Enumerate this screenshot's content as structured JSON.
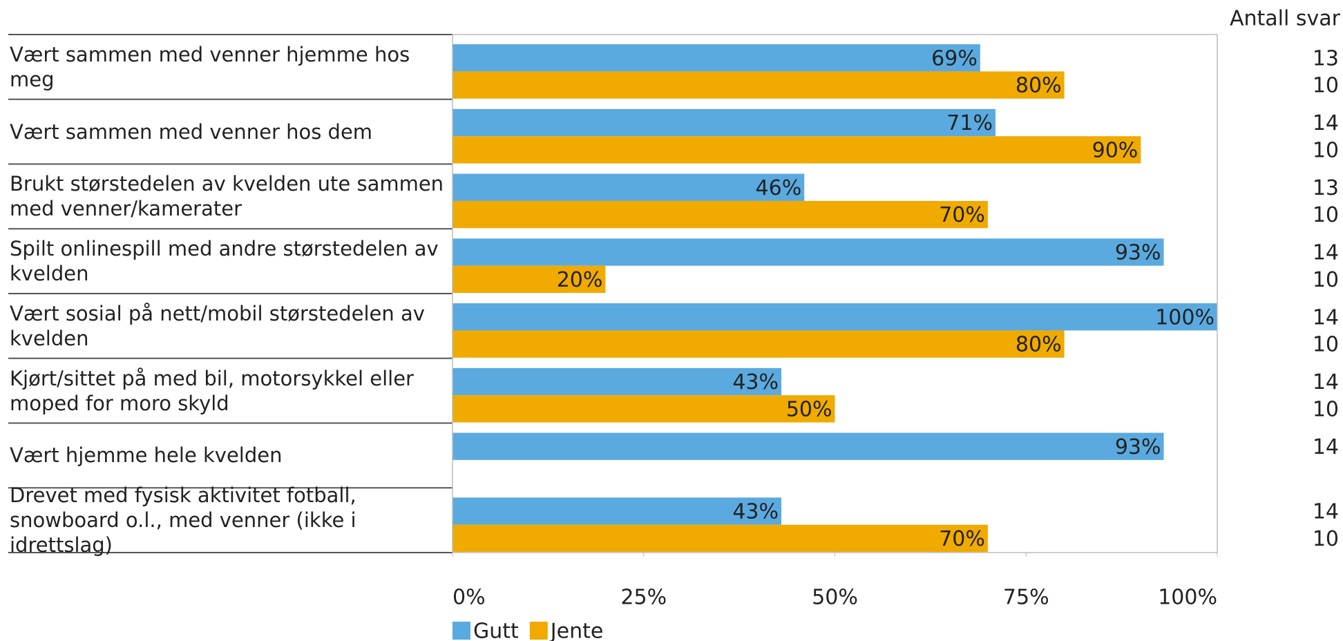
{
  "chart_data": {
    "type": "hbar",
    "categories": [
      "Vært sammen med venner hjemme hos meg",
      "Vært sammen med venner hos dem",
      "Brukt størstedelen av kvelden ute sammen med venner/kamerater",
      "Spilt onlinespill med andre størstedelen av kvelden",
      "Vært sosial på nett/mobil størstedelen av kvelden",
      "Kjørt/sittet på med bil, motorsykkel eller moped for moro skyld",
      "Vært hjemme hele kvelden",
      "Drevet med fysisk aktivitet fotball, snowboard o.l., med venner (ikke i idrettslag)"
    ],
    "series": [
      {
        "name": "Gutt",
        "color": "#5aaae0",
        "values": [
          69,
          71,
          46,
          93,
          100,
          43,
          93,
          43
        ],
        "value_labels": [
          "69%",
          "71%",
          "46%",
          "93%",
          "100%",
          "43%",
          "93%",
          "43%"
        ],
        "counts": [
          13,
          14,
          13,
          14,
          14,
          14,
          14,
          14
        ]
      },
      {
        "name": "Jente",
        "color": "#f0aa00",
        "values": [
          80,
          90,
          70,
          20,
          80,
          50,
          null,
          70
        ],
        "value_labels": [
          "80%",
          "90%",
          "70%",
          "20%",
          "80%",
          "50%",
          null,
          "70%"
        ],
        "counts": [
          10,
          10,
          10,
          10,
          10,
          10,
          null,
          10
        ]
      }
    ],
    "counts_label": "Antall svar",
    "xlim": [
      0,
      100
    ],
    "xticks": [
      {
        "value": 0,
        "label": "0%"
      },
      {
        "value": 25,
        "label": "25%"
      },
      {
        "value": 50,
        "label": "50%"
      },
      {
        "value": 75,
        "label": "75%"
      },
      {
        "value": 100,
        "label": "100%"
      }
    ],
    "grid": false,
    "legend": "bottom"
  }
}
